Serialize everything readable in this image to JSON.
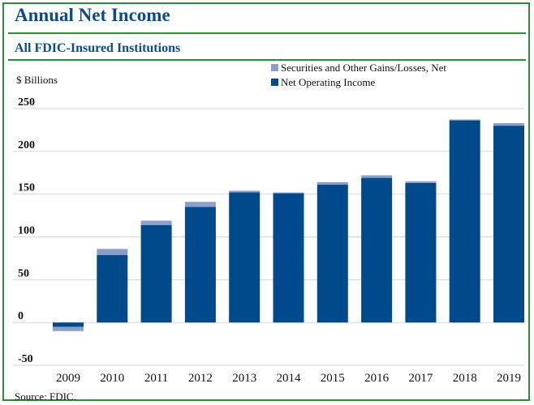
{
  "header": {
    "title": "Annual Net Income",
    "subtitle": "All FDIC-Insured Institutions"
  },
  "source": "Source: FDIC.",
  "chart_data": {
    "type": "bar",
    "stacked": true,
    "ylabel": "$ Billions",
    "ylim": [
      -50,
      250
    ],
    "yticks": [
      -50,
      0,
      50,
      100,
      150,
      200,
      250
    ],
    "categories": [
      "2009",
      "2010",
      "2011",
      "2012",
      "2013",
      "2014",
      "2015",
      "2016",
      "2017",
      "2018",
      "2019"
    ],
    "series": [
      {
        "name": "Net Operating Income",
        "color": "#004a8c",
        "values": [
          -5,
          79,
          114,
          135,
          152,
          151,
          161,
          169,
          163,
          237,
          230
        ]
      },
      {
        "name": "Securities and Other Gains/Losses, Net",
        "color": "#8c9fcc",
        "values": [
          -5,
          7,
          5,
          6,
          2,
          1,
          3,
          3,
          2,
          -1,
          3
        ]
      }
    ],
    "legend": {
      "position": "top-right",
      "order": [
        "Securities and Other Gains/Losses, Net",
        "Net Operating Income"
      ]
    },
    "grid": true
  }
}
